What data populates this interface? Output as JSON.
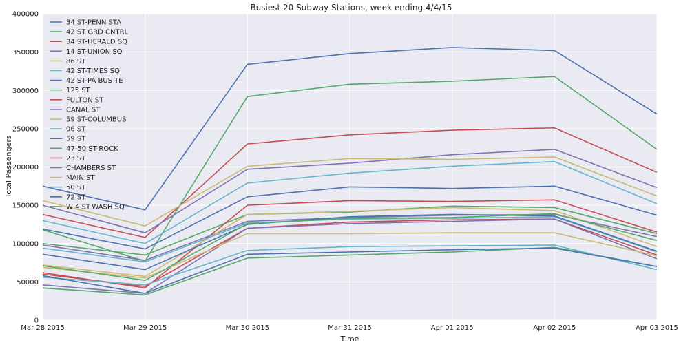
{
  "chart_data": {
    "type": "line",
    "title": "Busiest 20 Subway Stations, week ending 4/4/15",
    "xlabel": "Time",
    "ylabel": "Total Passengers",
    "categories": [
      "Mar 28 2015",
      "Mar 29 2015",
      "Mar 30 2015",
      "Mar 31 2015",
      "Apr 01 2015",
      "Apr 02 2015",
      "Apr 03 2015"
    ],
    "ylim": [
      0,
      400000
    ],
    "yticks": [
      0,
      50000,
      100000,
      150000,
      200000,
      250000,
      300000,
      350000,
      400000
    ],
    "grid": true,
    "legend_position": "top-left",
    "series": [
      {
        "name": "34 ST-PENN STA",
        "color": "#4c72b0",
        "values": [
          175000,
          144000,
          334000,
          348000,
          356000,
          352000,
          269000
        ]
      },
      {
        "name": "42 ST-GRD CNTRL",
        "color": "#55a868",
        "values": [
          118000,
          77000,
          292000,
          308000,
          312000,
          318000,
          223000
        ]
      },
      {
        "name": "34 ST-HERALD SQ",
        "color": "#c44e52",
        "values": [
          138000,
          108000,
          230000,
          242000,
          248000,
          251000,
          193000
        ]
      },
      {
        "name": "14 ST-UNION SQ",
        "color": "#8172b2",
        "values": [
          150000,
          114000,
          197000,
          205000,
          216000,
          223000,
          173000
        ]
      },
      {
        "name": "86 ST",
        "color": "#ccb974",
        "values": [
          156000,
          123000,
          201000,
          211000,
          210000,
          213000,
          162000
        ]
      },
      {
        "name": "42 ST-TIMES SQ",
        "color": "#64b5cd",
        "values": [
          130000,
          100000,
          179000,
          192000,
          201000,
          207000,
          152000
        ]
      },
      {
        "name": "42 ST-PA BUS TE",
        "color": "#4c72b0",
        "values": [
          119000,
          93000,
          161000,
          174000,
          172000,
          175000,
          137000
        ]
      },
      {
        "name": "125 ST",
        "color": "#55a868",
        "values": [
          100000,
          85000,
          138000,
          141000,
          149000,
          147000,
          113000
        ]
      },
      {
        "name": "FULTON ST",
        "color": "#c44e52",
        "values": [
          62000,
          42000,
          150000,
          156000,
          155000,
          157000,
          115000
        ]
      },
      {
        "name": "CANAL ST",
        "color": "#8172b2",
        "values": [
          98000,
          78000,
          129000,
          134000,
          137000,
          138000,
          109000
        ]
      },
      {
        "name": "59 ST-COLUMBUS",
        "color": "#ccb974",
        "values": [
          72000,
          57000,
          138000,
          142000,
          147000,
          143000,
          96000
        ]
      },
      {
        "name": "96 ST",
        "color": "#64b5cd",
        "values": [
          94000,
          76000,
          127000,
          132000,
          133000,
          135000,
          89000
        ]
      },
      {
        "name": "59 ST",
        "color": "#4c72b0",
        "values": [
          86000,
          66000,
          125000,
          135000,
          138000,
          136000,
          90000
        ]
      },
      {
        "name": "47-50 ST-ROCK",
        "color": "#55a868",
        "values": [
          42000,
          33000,
          81000,
          85000,
          89000,
          95000,
          70000
        ]
      },
      {
        "name": "23 ST",
        "color": "#c44e52",
        "values": [
          60000,
          44000,
          120000,
          128000,
          131000,
          132000,
          85000
        ]
      },
      {
        "name": "CHAMBERS ST",
        "color": "#8172b2",
        "values": [
          46000,
          35000,
          120000,
          126000,
          129000,
          132000,
          80000
        ]
      },
      {
        "name": "MAIN ST",
        "color": "#ccb974",
        "values": [
          69000,
          55000,
          113000,
          113000,
          114000,
          114000,
          84000
        ]
      },
      {
        "name": "50 ST",
        "color": "#64b5cd",
        "values": [
          56000,
          46000,
          91000,
          96000,
          97000,
          98000,
          66000
        ]
      },
      {
        "name": "72 ST",
        "color": "#4c72b0",
        "values": [
          58000,
          35000,
          86000,
          89000,
          92000,
          94000,
          70000
        ]
      },
      {
        "name": "W 4 ST-WASH SQ",
        "color": "#55a868",
        "values": [
          71000,
          52000,
          126000,
          133000,
          134000,
          139000,
          104000
        ]
      }
    ]
  }
}
